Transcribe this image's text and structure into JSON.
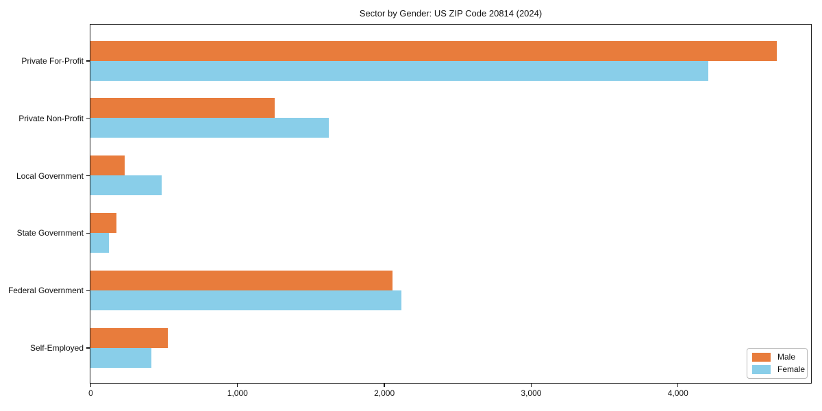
{
  "chart_data": {
    "type": "bar",
    "orientation": "horizontal",
    "title": "Sector by Gender: US ZIP Code 20814 (2024)",
    "categories": [
      "Private For-Profit",
      "Private Non-Profit",
      "Local Government",
      "State Government",
      "Federal Government",
      "Self-Employed"
    ],
    "series": [
      {
        "name": "Male",
        "color": "#E87C3C",
        "values": [
          4675,
          1255,
          235,
          175,
          2060,
          525
        ]
      },
      {
        "name": "Female",
        "color": "#89CEE9",
        "values": [
          4210,
          1625,
          485,
          125,
          2120,
          415
        ]
      }
    ],
    "xlabel": "",
    "ylabel": "",
    "xlim": [
      0,
      4904
    ],
    "xticks": [
      0,
      1000,
      2000,
      3000,
      4000
    ],
    "xtick_labels": [
      "0",
      "1,000",
      "2,000",
      "3,000",
      "4,000"
    ],
    "grid": false,
    "legend_position": "lower right",
    "spine_color": "#1a1a1a",
    "background_color": "#ffffff"
  }
}
